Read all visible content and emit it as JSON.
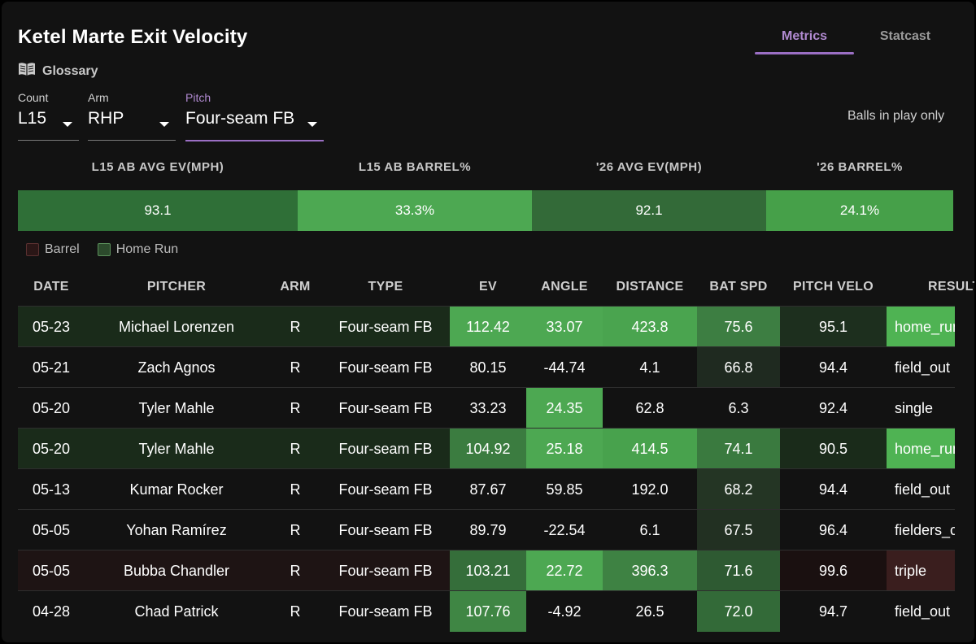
{
  "title": "Ketel Marte Exit Velocity",
  "tabs": [
    "Metrics",
    "Statcast"
  ],
  "glossary_label": "Glossary",
  "filters": {
    "count": {
      "label": "Count",
      "value": "L15"
    },
    "arm": {
      "label": "Arm",
      "value": "RHP"
    },
    "pitch": {
      "label": "Pitch",
      "value": "Four-seam FB"
    }
  },
  "balls_note": "Balls in play only",
  "summary": {
    "headers": [
      "L15 AB AVG EV(MPH)",
      "L15 AB BARREL%",
      "'26 AVG EV(MPH)",
      "'26 BARREL%"
    ],
    "values": [
      "93.1",
      "33.3%",
      "92.1",
      "24.1%"
    ],
    "colors": [
      "#2f6f37",
      "#4da852",
      "#336a38",
      "#46a049"
    ]
  },
  "legend": {
    "barrel": "Barrel",
    "home_run": "Home Run"
  },
  "table": {
    "headers": [
      "DATE",
      "PITCHER",
      "ARM",
      "TYPE",
      "EV",
      "ANGLE",
      "DISTANCE",
      "BAT SPD",
      "PITCH VELO",
      "RESULT"
    ],
    "rows": [
      {
        "date": "05-23",
        "pitcher": "Michael Lorenzen",
        "arm": "R",
        "type": "Four-seam FB",
        "ev": "112.42",
        "angle": "33.07",
        "distance": "423.8",
        "bat_spd": "75.6",
        "pitch_velo": "95.1",
        "result": "home_run",
        "bg": "#1a2b1a",
        "colors": {
          "ev": "#4da852",
          "angle": "#4da852",
          "distance": "#4aa44f",
          "bat_spd": "#3d7e42",
          "pitch_velo": "#1d2f1e",
          "result": "#4fb353"
        }
      },
      {
        "date": "05-21",
        "pitcher": "Zach Agnos",
        "arm": "R",
        "type": "Four-seam FB",
        "ev": "80.15",
        "angle": "-44.74",
        "distance": "4.1",
        "bat_spd": "66.8",
        "pitch_velo": "94.4",
        "result": "field_out",
        "bg": "",
        "colors": {
          "bat_spd": "#1f2a20"
        }
      },
      {
        "date": "05-20",
        "pitcher": "Tyler Mahle",
        "arm": "R",
        "type": "Four-seam FB",
        "ev": "33.23",
        "angle": "24.35",
        "distance": "62.8",
        "bat_spd": "6.3",
        "pitch_velo": "92.4",
        "result": "single",
        "bg": "",
        "colors": {
          "angle": "#4da852"
        }
      },
      {
        "date": "05-20",
        "pitcher": "Tyler Mahle",
        "arm": "R",
        "type": "Four-seam FB",
        "ev": "104.92",
        "angle": "25.18",
        "distance": "414.5",
        "bat_spd": "74.1",
        "pitch_velo": "90.5",
        "result": "home_run",
        "bg": "#1a2b1a",
        "colors": {
          "ev": "#3b7c40",
          "angle": "#4da852",
          "distance": "#48a24d",
          "bat_spd": "#3a7a3f",
          "result": "#4fb353"
        }
      },
      {
        "date": "05-13",
        "pitcher": "Kumar Rocker",
        "arm": "R",
        "type": "Four-seam FB",
        "ev": "87.67",
        "angle": "59.85",
        "distance": "192.0",
        "bat_spd": "68.2",
        "pitch_velo": "94.4",
        "result": "field_out",
        "bg": "",
        "colors": {
          "bat_spd": "#243524"
        }
      },
      {
        "date": "05-05",
        "pitcher": "Yohan Ramírez",
        "arm": "R",
        "type": "Four-seam FB",
        "ev": "89.79",
        "angle": "-22.54",
        "distance": "6.1",
        "bat_spd": "67.5",
        "pitch_velo": "96.4",
        "result": "fielders_choice",
        "bg": "",
        "colors": {
          "bat_spd": "#223022"
        }
      },
      {
        "date": "05-05",
        "pitcher": "Bubba Chandler",
        "arm": "R",
        "type": "Four-seam FB",
        "ev": "103.21",
        "angle": "22.72",
        "distance": "396.3",
        "bat_spd": "71.6",
        "pitch_velo": "99.6",
        "result": "triple",
        "bg": "#1e1414",
        "colors": {
          "ev": "#356e3a",
          "angle": "#4da852",
          "distance": "#3e8243",
          "bat_spd": "#2e5a32",
          "pitch_velo": "#1a1010",
          "result": "#3a1e1e"
        }
      },
      {
        "date": "04-28",
        "pitcher": "Chad Patrick",
        "arm": "R",
        "type": "Four-seam FB",
        "ev": "107.76",
        "angle": "-4.92",
        "distance": "26.5",
        "bat_spd": "72.0",
        "pitch_velo": "94.7",
        "result": "field_out",
        "bg": "",
        "colors": {
          "ev": "#3f8644",
          "bat_spd": "#336a38"
        }
      }
    ]
  }
}
